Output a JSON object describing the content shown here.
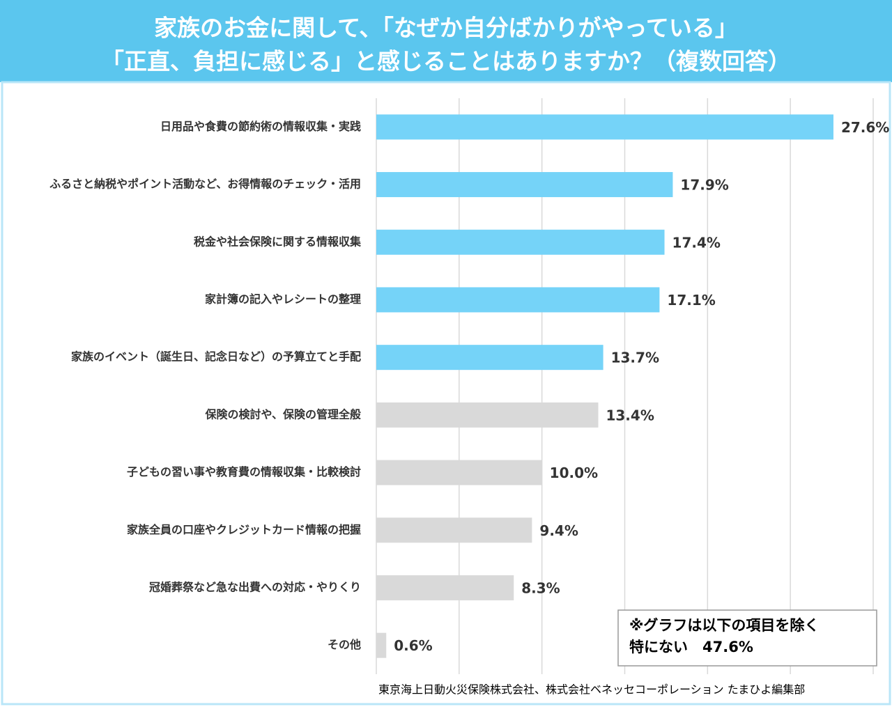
{
  "chart_data": {
    "type": "bar",
    "orientation": "horizontal",
    "title": [
      "家族のお金に関して、「なぜか自分ばかりがやっている」",
      "「正直、負担に感じる」と感じることはありますか？（複数回答）"
    ],
    "categories": [
      "日用品や食費の節約術の情報収集・実践",
      "ふるさと納税やポイント活動など、お得情報のチェック・活用",
      "税金や社会保険に関する情報収集",
      "家計簿の記入やレシートの整理",
      "家族のイベント（誕生日、記念日など）の予算立てと手配",
      "保険の検討や、保険の管理全般",
      "子どもの習い事や教育費の情報収集・比較検討",
      "家族全員の口座やクレジットカード情報の把握",
      "冠婚葬祭など急な出費への対応・やりくり",
      "その他"
    ],
    "values": [
      27.6,
      17.9,
      17.4,
      17.1,
      13.7,
      13.4,
      10.0,
      9.4,
      8.3,
      0.6
    ],
    "value_labels": [
      "27.6%",
      "17.9%",
      "17.4%",
      "17.1%",
      "13.7%",
      "13.4%",
      "10.0%",
      "9.4%",
      "8.3%",
      "0.6%"
    ],
    "colors": [
      "#75d3f8",
      "#75d3f8",
      "#75d3f8",
      "#75d3f8",
      "#75d3f8",
      "#d9d9d9",
      "#d9d9d9",
      "#d9d9d9",
      "#d9d9d9",
      "#d9d9d9"
    ],
    "xlim": [
      0,
      30
    ],
    "xticks": [
      0,
      5,
      10,
      15,
      20,
      25,
      30
    ],
    "grid": true,
    "note": [
      "※グラフは以下の項目を除く",
      "特にない　47.6%"
    ],
    "source": "東京海上日動火災保険株式会社、株式会社ベネッセコーポレーション たまひよ編集部"
  }
}
